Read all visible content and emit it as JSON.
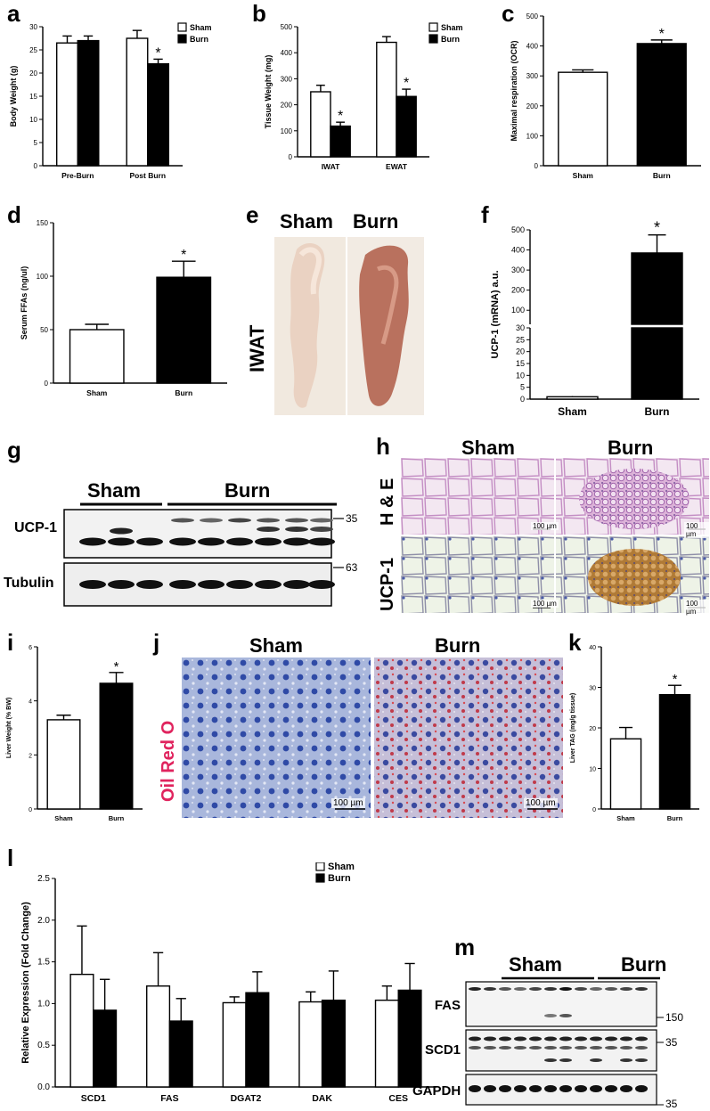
{
  "panel_labels": [
    "a",
    "b",
    "c",
    "d",
    "e",
    "f",
    "g",
    "h",
    "i",
    "j",
    "k",
    "l",
    "m"
  ],
  "chart_data": [
    {
      "id": "a",
      "type": "bar",
      "ylabel": "Body Weight (g)",
      "ylim": [
        0,
        30
      ],
      "yticks": [
        "0",
        "5",
        "10",
        "15",
        "20",
        "25",
        "30"
      ],
      "categories": [
        "Pre-Burn",
        "Post Burn"
      ],
      "series": [
        {
          "name": "Sham",
          "values": [
            26.5,
            27.5
          ],
          "errors": [
            1.5,
            1.7
          ],
          "color": "#ffffff"
        },
        {
          "name": "Burn",
          "values": [
            27.0,
            22.0
          ],
          "errors": [
            1.0,
            1.0
          ],
          "color": "#000000"
        }
      ],
      "annotations": [
        {
          "category": 1,
          "series": 1,
          "text": "*"
        }
      ],
      "legend": "top-right"
    },
    {
      "id": "b",
      "type": "bar",
      "ylabel": "Tissue Weight (mg)",
      "ylim": [
        0,
        500
      ],
      "yticks": [
        "0",
        "100",
        "200",
        "300",
        "400",
        "500"
      ],
      "categories": [
        "IWAT",
        "EWAT"
      ],
      "series": [
        {
          "name": "Sham",
          "values": [
            250,
            440
          ],
          "errors": [
            25,
            22
          ],
          "color": "#ffffff"
        },
        {
          "name": "Burn",
          "values": [
            118,
            232
          ],
          "errors": [
            15,
            28
          ],
          "color": "#000000"
        }
      ],
      "annotations": [
        {
          "category": 0,
          "series": 1,
          "text": "*"
        },
        {
          "category": 1,
          "series": 1,
          "text": "*"
        }
      ],
      "legend": "top-right"
    },
    {
      "id": "c",
      "type": "bar",
      "ylabel": "Maximal respiration (OCR)",
      "ylim": [
        0,
        500
      ],
      "yticks": [
        "0",
        "100",
        "200",
        "300",
        "400",
        "500"
      ],
      "categories": [
        "Sham",
        "Burn"
      ],
      "series": [
        {
          "name": "",
          "values": [
            312,
            408
          ],
          "errors": [
            8,
            12
          ],
          "colors": [
            "#ffffff",
            "#000000"
          ]
        }
      ],
      "annotations": [
        {
          "category": 1,
          "series": 0,
          "text": "*"
        }
      ]
    },
    {
      "id": "d",
      "type": "bar",
      "ylabel": "Serum FFAs (ng/ul)",
      "ylim": [
        0,
        150
      ],
      "yticks": [
        "0",
        "50",
        "100",
        "150"
      ],
      "categories": [
        "Sham",
        "Burn"
      ],
      "series": [
        {
          "name": "",
          "values": [
            50,
            99
          ],
          "errors": [
            5,
            15
          ],
          "colors": [
            "#ffffff",
            "#000000"
          ]
        }
      ],
      "annotations": [
        {
          "category": 1,
          "series": 0,
          "text": "*"
        }
      ]
    },
    {
      "id": "f",
      "type": "bar",
      "ylabel": "UCP-1 (mRNA) a.u.",
      "yticks_upper": [
        "100",
        "200",
        "300",
        "400",
        "500"
      ],
      "yticks_lower": [
        "0",
        "5",
        "10",
        "15",
        "20",
        "25",
        "30"
      ],
      "ylim_upper": [
        30,
        500
      ],
      "ylim_lower": [
        0,
        30
      ],
      "broken_axis": true,
      "categories": [
        "Sham",
        "Burn"
      ],
      "series": [
        {
          "name": "",
          "values": [
            1,
            385
          ],
          "errors": [
            0.3,
            90
          ],
          "colors": [
            "#ffffff",
            "#000000"
          ]
        }
      ],
      "annotations": [
        {
          "category": 1,
          "series": 0,
          "text": "*"
        }
      ]
    },
    {
      "id": "i",
      "type": "bar",
      "ylabel": "Liver Weight (% BW)",
      "ylim": [
        0,
        6
      ],
      "yticks": [
        "0",
        "2",
        "4",
        "6"
      ],
      "categories": [
        "Sham",
        "Burn"
      ],
      "series": [
        {
          "name": "",
          "values": [
            3.3,
            4.65
          ],
          "errors": [
            0.17,
            0.4
          ],
          "colors": [
            "#ffffff",
            "#000000"
          ]
        }
      ],
      "annotations": [
        {
          "category": 1,
          "series": 0,
          "text": "*"
        }
      ]
    },
    {
      "id": "k",
      "type": "bar",
      "ylabel": "Liver TAG (mg/g tissue)",
      "ylim": [
        0,
        40
      ],
      "yticks": [
        "0",
        "10",
        "20",
        "30",
        "40"
      ],
      "categories": [
        "Sham",
        "Burn"
      ],
      "series": [
        {
          "name": "",
          "values": [
            17.3,
            28.2
          ],
          "errors": [
            2.8,
            2.3
          ],
          "colors": [
            "#ffffff",
            "#000000"
          ]
        }
      ],
      "annotations": [
        {
          "category": 1,
          "series": 0,
          "text": "*"
        }
      ]
    },
    {
      "id": "l",
      "type": "bar",
      "ylabel": "Relative Expression (Fold Change)",
      "ylim": [
        0,
        2.5
      ],
      "yticks": [
        "0.0",
        "0.5",
        "1.0",
        "1.5",
        "2.0",
        "2.5"
      ],
      "categories": [
        "SCD1",
        "FAS",
        "DGAT2",
        "DAK",
        "CES"
      ],
      "series": [
        {
          "name": "Sham",
          "values": [
            1.35,
            1.21,
            1.01,
            1.02,
            1.04
          ],
          "errors": [
            0.58,
            0.4,
            0.07,
            0.12,
            0.17
          ],
          "color": "#ffffff"
        },
        {
          "name": "Burn",
          "values": [
            0.92,
            0.79,
            1.13,
            1.04,
            1.16
          ],
          "errors": [
            0.37,
            0.27,
            0.25,
            0.35,
            0.32
          ],
          "color": "#000000"
        }
      ],
      "legend": "top-right"
    }
  ],
  "photos": {
    "e": {
      "titles": [
        "Sham",
        "Burn"
      ],
      "side_label": "IWAT"
    },
    "h": {
      "titles": [
        "Sham",
        "Burn"
      ],
      "row_labels": [
        "H & E",
        "UCP-1"
      ],
      "scalebar": "100 µm"
    },
    "j": {
      "titles": [
        "Sham",
        "Burn"
      ],
      "side_label": "Oil Red O",
      "side_color": "#e0245e",
      "scalebar": "100 µm"
    }
  },
  "blots": {
    "g": {
      "groups": [
        "Sham",
        "Burn"
      ],
      "rows": [
        "UCP-1",
        "Tubulin"
      ],
      "markers": [
        "35",
        "63"
      ]
    },
    "m": {
      "groups": [
        "Sham",
        "Burn"
      ],
      "rows": [
        "FAS",
        "SCD1",
        "GAPDH"
      ],
      "markers": [
        "150",
        "35",
        "35"
      ]
    }
  }
}
